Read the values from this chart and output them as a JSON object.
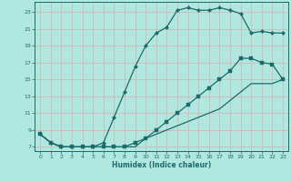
{
  "title": "",
  "xlabel": "Humidex (Indice chaleur)",
  "bg_color": "#b0e8e0",
  "grid_color": "#d4b8b8",
  "line_color": "#1a6b6b",
  "xlim": [
    -0.5,
    23.5
  ],
  "ylim": [
    6.5,
    24.2
  ],
  "xticks": [
    0,
    1,
    2,
    3,
    4,
    5,
    6,
    7,
    8,
    9,
    10,
    11,
    12,
    13,
    14,
    15,
    16,
    17,
    18,
    19,
    20,
    21,
    22,
    23
  ],
  "yticks": [
    7,
    9,
    11,
    13,
    15,
    17,
    19,
    21,
    23
  ],
  "line1_x": [
    0,
    1,
    2,
    3,
    4,
    5,
    6,
    7,
    8,
    9,
    10,
    11,
    12,
    13,
    14,
    15,
    16,
    17,
    18,
    19,
    20,
    21,
    22,
    23
  ],
  "line1_y": [
    8.5,
    7.5,
    7.0,
    7.0,
    7.0,
    7.0,
    7.5,
    10.5,
    13.5,
    16.5,
    19.0,
    20.5,
    21.2,
    23.2,
    23.5,
    23.2,
    23.2,
    23.5,
    23.2,
    22.8,
    20.5,
    20.7,
    20.5,
    20.5
  ],
  "line2_x": [
    0,
    1,
    2,
    3,
    4,
    5,
    6,
    7,
    8,
    9,
    10,
    11,
    12,
    13,
    14,
    15,
    16,
    17,
    18,
    19,
    20,
    21,
    22,
    23
  ],
  "line2_y": [
    8.5,
    7.5,
    7.0,
    7.0,
    7.0,
    7.0,
    7.0,
    7.0,
    7.0,
    7.5,
    8.0,
    9.0,
    10.0,
    11.0,
    12.0,
    13.0,
    14.0,
    15.0,
    16.0,
    17.5,
    17.5,
    17.0,
    16.8,
    15.0
  ],
  "line3_x": [
    0,
    1,
    2,
    3,
    4,
    5,
    6,
    7,
    8,
    9,
    10,
    11,
    12,
    13,
    14,
    15,
    16,
    17,
    18,
    19,
    20,
    21,
    22,
    23
  ],
  "line3_y": [
    8.5,
    7.5,
    7.0,
    7.0,
    7.0,
    7.0,
    7.0,
    7.0,
    7.0,
    7.0,
    8.0,
    8.5,
    9.0,
    9.5,
    10.0,
    10.5,
    11.0,
    11.5,
    12.5,
    13.5,
    14.5,
    14.5,
    14.5,
    15.0
  ]
}
